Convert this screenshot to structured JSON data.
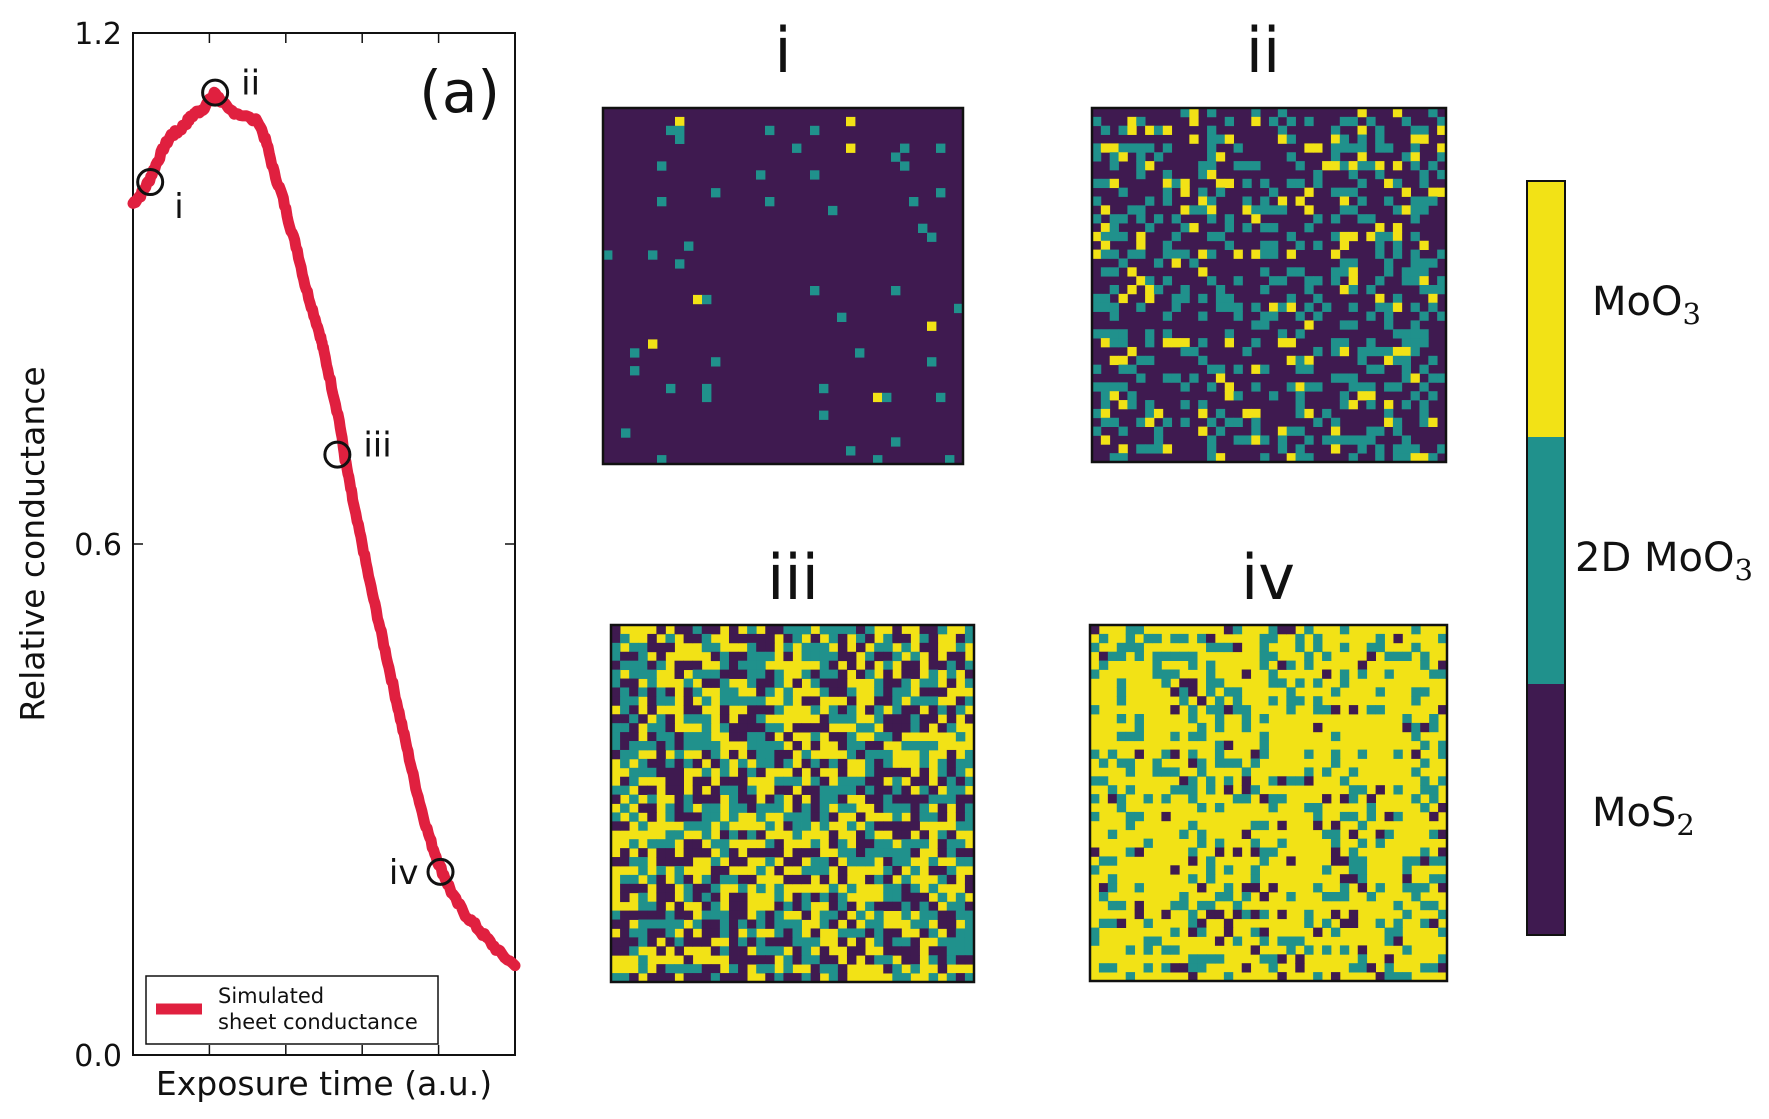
{
  "chart_data": {
    "type": "line",
    "panel_label": "(a)",
    "ylabel": "Relative conductance",
    "xlabel": "Exposure time (a.u.)",
    "ylim": [
      0,
      1.2
    ],
    "xlim": [
      0,
      1
    ],
    "yticks": [
      0.0,
      0.6,
      1.2
    ],
    "ytick_labels": [
      "0.0",
      "0.6",
      "1.2"
    ],
    "legend": {
      "label_line1": "Simulated",
      "label_line2": "sheet conductance",
      "placement": "lower-left"
    },
    "series": [
      {
        "name": "Simulated sheet conductance",
        "color": "#e0203f",
        "points": [
          [
            0.0,
            1.0
          ],
          [
            0.02,
            1.01
          ],
          [
            0.04,
            1.025
          ],
          [
            0.06,
            1.045
          ],
          [
            0.08,
            1.065
          ],
          [
            0.1,
            1.08
          ],
          [
            0.12,
            1.085
          ],
          [
            0.14,
            1.095
          ],
          [
            0.16,
            1.105
          ],
          [
            0.18,
            1.11
          ],
          [
            0.2,
            1.12
          ],
          [
            0.215,
            1.13
          ],
          [
            0.23,
            1.12
          ],
          [
            0.25,
            1.11
          ],
          [
            0.28,
            1.105
          ],
          [
            0.33,
            1.095
          ],
          [
            0.35,
            1.07
          ],
          [
            0.37,
            1.035
          ],
          [
            0.39,
            1.01
          ],
          [
            0.41,
            0.975
          ],
          [
            0.43,
            0.945
          ],
          [
            0.45,
            0.905
          ],
          [
            0.47,
            0.875
          ],
          [
            0.49,
            0.845
          ],
          [
            0.5,
            0.825
          ],
          [
            0.52,
            0.785
          ],
          [
            0.54,
            0.745
          ],
          [
            0.555,
            0.7
          ],
          [
            0.57,
            0.665
          ],
          [
            0.58,
            0.64
          ],
          [
            0.6,
            0.6
          ],
          [
            0.62,
            0.555
          ],
          [
            0.64,
            0.515
          ],
          [
            0.66,
            0.475
          ],
          [
            0.68,
            0.435
          ],
          [
            0.7,
            0.395
          ],
          [
            0.72,
            0.355
          ],
          [
            0.74,
            0.315
          ],
          [
            0.76,
            0.28
          ],
          [
            0.78,
            0.25
          ],
          [
            0.8,
            0.225
          ],
          [
            0.82,
            0.205
          ],
          [
            0.84,
            0.185
          ],
          [
            0.87,
            0.165
          ],
          [
            0.9,
            0.15
          ],
          [
            0.93,
            0.135
          ],
          [
            0.96,
            0.12
          ],
          [
            1.0,
            0.105
          ]
        ]
      }
    ],
    "markers": [
      {
        "label": "i",
        "x": 0.045,
        "y": 1.025,
        "label_side": "below-right"
      },
      {
        "label": "ii",
        "x": 0.215,
        "y": 1.13,
        "label_side": "right"
      },
      {
        "label": "iii",
        "x": 0.535,
        "y": 0.705,
        "label_side": "right"
      },
      {
        "label": "iv",
        "x": 0.805,
        "y": 0.215,
        "label_side": "left"
      }
    ]
  },
  "maps": {
    "description_colors": {
      "MoS2": "#3f1a50",
      "2D MoO3": "#20918c",
      "MoO3": "#f2e216"
    },
    "panels": [
      {
        "title": "i",
        "grid": 40,
        "frac_mos2": 0.96,
        "frac_2d": 0.035,
        "frac_moo3": 0.005,
        "seed": 11
      },
      {
        "title": "ii",
        "grid": 40,
        "frac_mos2": 0.65,
        "frac_2d": 0.26,
        "frac_moo3": 0.09,
        "seed": 23
      },
      {
        "title": "iii",
        "grid": 40,
        "frac_mos2": 0.3,
        "frac_2d": 0.33,
        "frac_moo3": 0.37,
        "seed": 37
      },
      {
        "title": "iv",
        "grid": 40,
        "frac_mos2": 0.08,
        "frac_2d": 0.22,
        "frac_moo3": 0.7,
        "seed": 51
      }
    ]
  },
  "colorbar": {
    "labels": [
      {
        "main": "MoO",
        "sub": "3"
      },
      {
        "main": "2D MoO",
        "sub": "3"
      },
      {
        "main": "MoS",
        "sub": "2"
      }
    ],
    "colors": [
      "#f2e216",
      "#20918c",
      "#3f1a50"
    ]
  }
}
